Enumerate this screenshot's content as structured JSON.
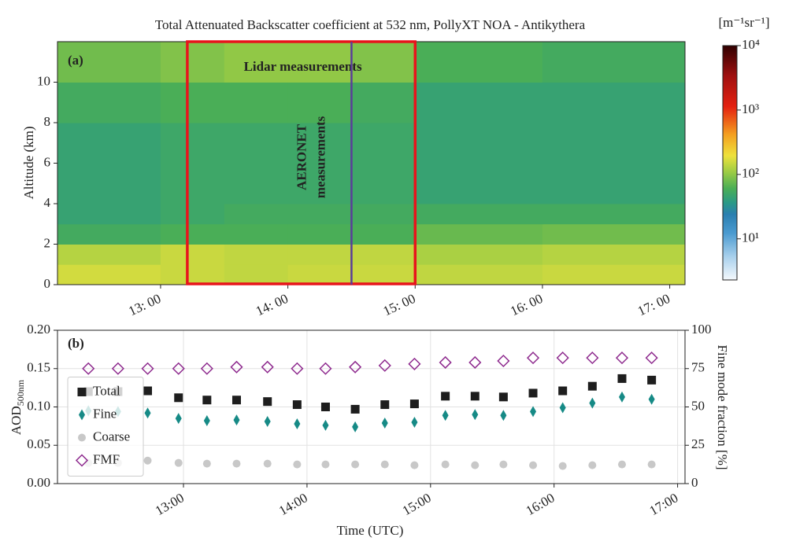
{
  "chart_data": [
    {
      "type": "heatmap",
      "title": "Total Attenuated Backscatter coefficient at 532 nm, PollyXT NOA - Antikythera",
      "panel_label": "(a)",
      "ylabel": "Altitude (km)",
      "xlim": [
        12.19,
        17.12
      ],
      "xticks": [
        {
          "value": 13,
          "label": "13: 00"
        },
        {
          "value": 14,
          "label": "14: 00"
        },
        {
          "value": 15,
          "label": "15: 00"
        },
        {
          "value": 16,
          "label": "16: 00"
        },
        {
          "value": 17,
          "label": "17: 00"
        }
      ],
      "ylim": [
        0,
        12
      ],
      "yticks": [
        0,
        2,
        4,
        6,
        8,
        10
      ],
      "x_edges": [
        12.19,
        13,
        13.5,
        14,
        14.5,
        15,
        16,
        17.12
      ],
      "y_edges": [
        0,
        1,
        2,
        3,
        4,
        6,
        8,
        10,
        12
      ],
      "z": [
        [
          160,
          150,
          140,
          150,
          150,
          140,
          150
        ],
        [
          130,
          150,
          140,
          140,
          140,
          120,
          130
        ],
        [
          55,
          60,
          60,
          60,
          60,
          75,
          80
        ],
        [
          45,
          50,
          55,
          55,
          55,
          55,
          55
        ],
        [
          45,
          50,
          50,
          50,
          50,
          45,
          45
        ],
        [
          45,
          50,
          50,
          50,
          50,
          45,
          45
        ],
        [
          55,
          60,
          60,
          60,
          55,
          45,
          45
        ],
        [
          80,
          90,
          100,
          100,
          90,
          60,
          55
        ]
      ],
      "clim": [
        2.3,
        10000
      ],
      "log_color": true,
      "cticks": [
        {
          "value": 10,
          "label": "10¹"
        },
        {
          "value": 100,
          "label": "10²"
        },
        {
          "value": 1000,
          "label": "10³"
        },
        {
          "value": 10000,
          "label": "10⁴"
        }
      ],
      "colorbar_label": "[m⁻¹sr⁻¹]",
      "lidar_window": [
        13.21,
        15.0
      ],
      "lidar_label": "Lidar measurements",
      "lidar_color": "#e8141c",
      "aeronet_time": 14.5,
      "aeronet_label": [
        "AERONET",
        "measurements"
      ],
      "aeronet_color": "#5a3d9a"
    },
    {
      "type": "scatter",
      "panel_label": "(b)",
      "xlabel": "Time (UTC)",
      "ylabel": {
        "main": "AOD",
        "sub": "500nm"
      },
      "y2label": "Fine mode fraction [%]",
      "xlim": [
        11.98,
        17.06
      ],
      "xticks": [
        {
          "value": 13,
          "label": "13:00"
        },
        {
          "value": 14,
          "label": "14:00"
        },
        {
          "value": 15,
          "label": "15:00"
        },
        {
          "value": 16,
          "label": "16:00"
        },
        {
          "value": 17,
          "label": "17:00"
        }
      ],
      "ylim": [
        0,
        0.2
      ],
      "yticks": [
        {
          "value": 0,
          "label": "0.00"
        },
        {
          "value": 0.05,
          "label": "0.05"
        },
        {
          "value": 0.1,
          "label": "0.10"
        },
        {
          "value": 0.15,
          "label": "0.15"
        },
        {
          "value": 0.2,
          "label": "0.20"
        }
      ],
      "y2lim": [
        0,
        100
      ],
      "y2ticks": [
        {
          "value": 0,
          "label": "0"
        },
        25,
        50,
        75,
        100
      ],
      "grid": true,
      "legend": "center left",
      "x": [
        12.23,
        12.47,
        12.71,
        12.96,
        13.19,
        13.43,
        13.68,
        13.92,
        14.15,
        14.39,
        14.63,
        14.87,
        15.12,
        15.36,
        15.59,
        15.83,
        16.07,
        16.31,
        16.55,
        16.79
      ],
      "series": [
        {
          "name": "Total",
          "marker": "square",
          "color": "#1e1e1e",
          "values": [
            0.12,
            0.12,
            0.121,
            0.112,
            0.109,
            0.109,
            0.107,
            0.103,
            0.1,
            0.097,
            0.103,
            0.104,
            0.114,
            0.114,
            0.113,
            0.118,
            0.121,
            0.127,
            0.137,
            0.135
          ]
        },
        {
          "name": "Fine",
          "marker": "diamond",
          "color": "#168a86",
          "values": [
            0.095,
            0.094,
            0.092,
            0.085,
            0.082,
            0.083,
            0.081,
            0.078,
            0.076,
            0.074,
            0.079,
            0.08,
            0.089,
            0.09,
            0.089,
            0.094,
            0.099,
            0.105,
            0.113,
            0.11
          ]
        },
        {
          "name": "Coarse",
          "marker": "circle",
          "color": "#c8c8c8",
          "values": [
            0.027,
            0.027,
            0.03,
            0.027,
            0.026,
            0.026,
            0.026,
            0.025,
            0.025,
            0.025,
            0.025,
            0.024,
            0.025,
            0.024,
            0.025,
            0.024,
            0.023,
            0.024,
            0.025,
            0.025
          ]
        },
        {
          "name": "FMF",
          "marker": "open-diamond",
          "color": "#8e2a8e",
          "axis": "y2",
          "values": [
            75,
            75,
            75,
            75,
            75,
            76,
            76,
            75,
            75,
            76,
            77,
            78,
            79,
            79,
            80,
            82,
            82,
            82,
            82,
            82
          ]
        }
      ]
    }
  ]
}
